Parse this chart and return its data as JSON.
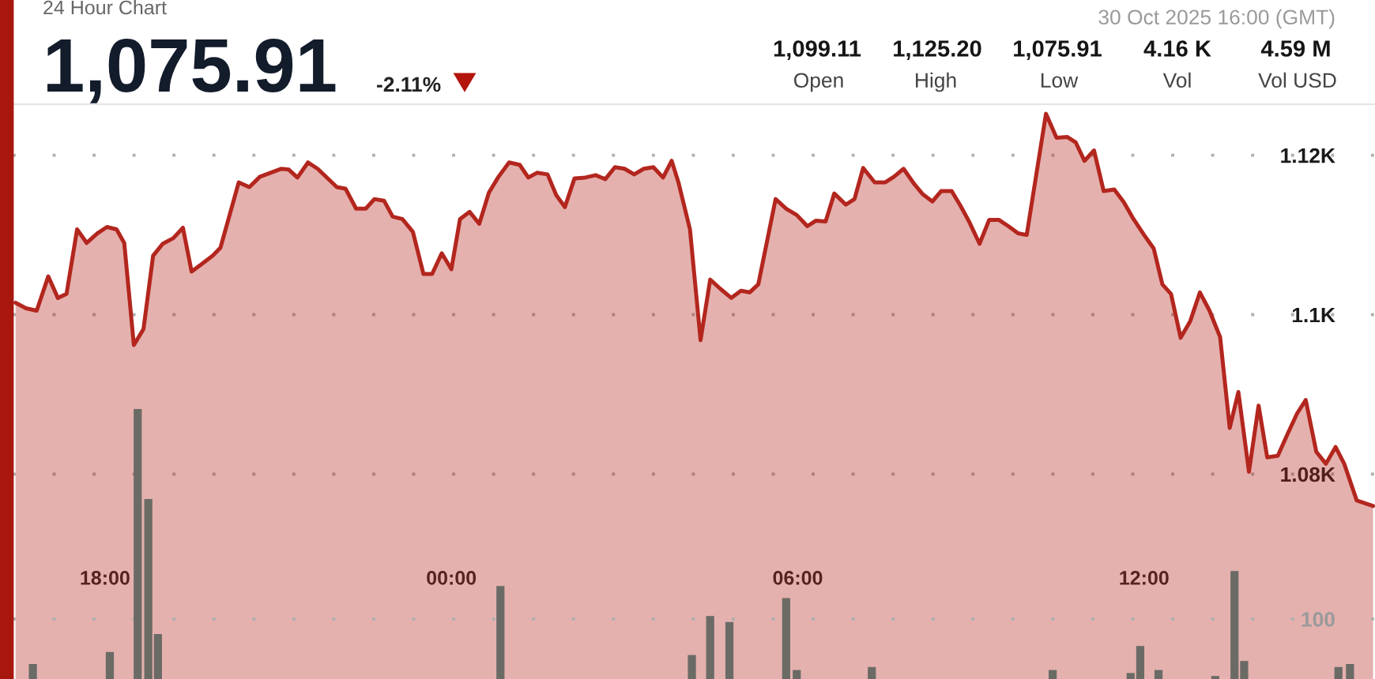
{
  "chart_data": {
    "type": "area",
    "title": "24 Hour Chart",
    "subtitle": "1,075.91",
    "annotations": [
      "30 Oct 2025 16:00 (GMT)",
      "-2.11%",
      "1,099.11",
      "Open",
      "1,125.20",
      "High",
      "1,075.91",
      "Low",
      "4.16 K",
      "Vol",
      "4.59 M",
      "Vol USD"
    ],
    "x": [
      "2025-10-29T16:27",
      "2025-10-29T16:38",
      "2025-10-29T16:49",
      "2025-10-29T17:01",
      "2025-10-29T17:11",
      "2025-10-29T17:20",
      "2025-10-29T17:31",
      "2025-10-29T17:41",
      "2025-10-29T17:52",
      "2025-10-29T18:02",
      "2025-10-29T18:12",
      "2025-10-29T18:20",
      "2025-10-29T18:30",
      "2025-10-29T18:40",
      "2025-10-29T18:50",
      "2025-10-29T19:00",
      "2025-10-29T19:11",
      "2025-10-29T19:21",
      "2025-10-29T19:30",
      "2025-10-29T19:41",
      "2025-10-29T19:52",
      "2025-10-29T20:00",
      "2025-10-29T20:19",
      "2025-10-29T20:30",
      "2025-10-29T20:41",
      "2025-10-29T20:52",
      "2025-10-29T21:03",
      "2025-10-29T21:11",
      "2025-10-29T21:20",
      "2025-10-29T21:31",
      "2025-10-29T21:41",
      "2025-10-29T22:01",
      "2025-10-29T22:10",
      "2025-10-29T22:21",
      "2025-10-29T22:31",
      "2025-10-29T22:40",
      "2025-10-29T22:50",
      "2025-10-29T22:59",
      "2025-10-29T23:09",
      "2025-10-29T23:20",
      "2025-10-29T23:31",
      "2025-10-29T23:40",
      "2025-10-29T23:50",
      "2025-10-30T00:00",
      "2025-10-30T00:09",
      "2025-10-30T00:19",
      "2025-10-30T00:29",
      "2025-10-30T00:39",
      "2025-10-30T00:49",
      "2025-10-30T01:00",
      "2025-10-30T01:11",
      "2025-10-30T01:20",
      "2025-10-30T01:29",
      "2025-10-30T01:40",
      "2025-10-30T01:49",
      "2025-10-30T01:58",
      "2025-10-30T02:08",
      "2025-10-30T02:19",
      "2025-10-30T02:30",
      "2025-10-30T02:40",
      "2025-10-30T02:50",
      "2025-10-30T03:00",
      "2025-10-30T03:10",
      "2025-10-30T03:20",
      "2025-10-30T03:30",
      "2025-10-30T03:40",
      "2025-10-30T03:49",
      "2025-10-30T03:56",
      "2025-10-30T04:08",
      "2025-10-30T04:19",
      "2025-10-30T04:29",
      "2025-10-30T04:40",
      "2025-10-30T04:51",
      "2025-10-30T05:01",
      "2025-10-30T05:10",
      "2025-10-30T05:19",
      "2025-10-30T05:37",
      "2025-10-30T05:48",
      "2025-10-30T05:59",
      "2025-10-30T06:10",
      "2025-10-30T06:19",
      "2025-10-30T06:29",
      "2025-10-30T06:38",
      "2025-10-30T06:50",
      "2025-10-30T06:59",
      "2025-10-30T07:08",
      "2025-10-30T07:20",
      "2025-10-30T07:31",
      "2025-10-30T07:40",
      "2025-10-30T07:50",
      "2025-10-30T08:01",
      "2025-10-30T08:10",
      "2025-10-30T08:20",
      "2025-10-30T08:29",
      "2025-10-30T08:40",
      "2025-10-30T08:49",
      "2025-10-30T08:58",
      "2025-10-30T09:09",
      "2025-10-30T09:19",
      "2025-10-30T09:29",
      "2025-10-30T09:39",
      "2025-10-30T09:49",
      "2025-10-30T09:58",
      "2025-10-30T10:18",
      "2025-10-30T10:29",
      "2025-10-30T10:40",
      "2025-10-30T10:49",
      "2025-10-30T10:58",
      "2025-10-30T11:08",
      "2025-10-30T11:18",
      "2025-10-30T11:29",
      "2025-10-30T11:39",
      "2025-10-30T11:49",
      "2025-10-30T12:00",
      "2025-10-30T12:10",
      "2025-10-30T12:19",
      "2025-10-30T12:28",
      "2025-10-30T12:38",
      "2025-10-30T12:48",
      "2025-10-30T12:58",
      "2025-10-30T13:08",
      "2025-10-30T13:19",
      "2025-10-30T13:29",
      "2025-10-30T13:38",
      "2025-10-30T13:49",
      "2025-10-30T13:59",
      "2025-10-30T14:08",
      "2025-10-30T14:19",
      "2025-10-30T14:29",
      "2025-10-30T14:39",
      "2025-10-30T14:48",
      "2025-10-30T14:59",
      "2025-10-30T15:09",
      "2025-10-30T15:19",
      "2025-10-30T15:28",
      "2025-10-30T15:41",
      "2025-10-30T15:58"
    ],
    "series": [
      {
        "color": "#b3261e",
        "values": [
          1101.5,
          1100.8,
          1100.5,
          1104.8,
          1102.1,
          1102.6,
          1110.7,
          1109.0,
          1110.2,
          1111.0,
          1110.7,
          1109.0,
          1096.2,
          1098.2,
          1107.4,
          1108.9,
          1109.6,
          1110.9,
          1105.4,
          1106.4,
          1107.4,
          1108.4,
          1116.6,
          1116.0,
          1117.3,
          1117.8,
          1118.3,
          1118.2,
          1117.2,
          1119.1,
          1118.3,
          1116.0,
          1115.8,
          1113.3,
          1113.3,
          1114.5,
          1114.3,
          1112.3,
          1112.0,
          1110.4,
          1105.1,
          1105.1,
          1107.7,
          1105.7,
          1112.0,
          1112.9,
          1111.4,
          1115.3,
          1117.3,
          1119.1,
          1118.8,
          1117.2,
          1117.8,
          1117.6,
          1115.0,
          1113.5,
          1117.1,
          1117.2,
          1117.5,
          1117.0,
          1118.5,
          1118.3,
          1117.6,
          1118.3,
          1118.5,
          1117.2,
          1119.3,
          1116.6,
          1110.7,
          1096.8,
          1104.4,
          1103.2,
          1102.1,
          1103.0,
          1102.8,
          1103.8,
          1114.5,
          1113.3,
          1112.5,
          1111.1,
          1111.8,
          1111.7,
          1115.2,
          1113.8,
          1114.5,
          1118.4,
          1116.6,
          1116.6,
          1117.3,
          1118.3,
          1116.4,
          1115.1,
          1114.2,
          1115.5,
          1115.5,
          1113.7,
          1111.7,
          1108.9,
          1111.9,
          1111.9,
          1111.1,
          1110.2,
          1110.0,
          1125.2,
          1122.2,
          1122.3,
          1121.6,
          1119.3,
          1120.6,
          1115.5,
          1115.7,
          1114.1,
          1112.0,
          1110.0,
          1108.3,
          1103.8,
          1102.6,
          1097.1,
          1099.2,
          1102.8,
          1100.5,
          1097.2,
          1085.8,
          1090.3,
          1080.3,
          1088.6,
          1082.1,
          1082.3,
          1085.0,
          1087.6,
          1089.3,
          1082.8,
          1081.3,
          1083.4,
          1081.3,
          1076.7,
          1076.0
        ]
      },
      {
        "type": "bar",
        "axis": "y2",
        "color": "#6b6b66",
        "x": [
          "2025-10-29T16:45",
          "2025-10-29T18:05",
          "2025-10-29T18:34",
          "2025-10-29T18:45",
          "2025-10-29T18:55",
          "2025-10-30T00:51",
          "2025-10-30T04:10",
          "2025-10-30T04:29",
          "2025-10-30T04:49",
          "2025-10-30T05:48",
          "2025-10-30T05:59",
          "2025-10-30T07:17",
          "2025-10-30T10:25",
          "2025-10-30T11:46",
          "2025-10-30T11:56",
          "2025-10-30T12:15",
          "2025-10-30T13:14",
          "2025-10-30T13:34",
          "2025-10-30T13:44",
          "2025-10-30T15:22",
          "2025-10-30T15:34"
        ],
        "values": [
          25,
          45,
          450,
          300,
          75,
          155,
          40,
          105,
          95,
          135,
          15,
          20,
          15,
          10,
          55,
          15,
          5,
          180,
          30,
          20,
          25
        ]
      }
    ],
    "xlim": [
      "2025-10-29T16:24",
      "2025-10-30T16:00"
    ],
    "xticks": [
      {
        "value": "2025-10-29T18:00",
        "label": "18:00"
      },
      {
        "value": "2025-10-30T00:00",
        "label": "00:00"
      },
      {
        "value": "2025-10-30T06:00",
        "label": "06:00"
      },
      {
        "value": "2025-10-30T12:00",
        "label": "12:00"
      }
    ],
    "ylim": [
      1054.3,
      1126.4
    ],
    "yticks": [
      {
        "value": 1080,
        "label": "1.08K"
      },
      {
        "value": 1100,
        "label": "1.1K"
      },
      {
        "value": 1120,
        "label": "1.12K"
      }
    ],
    "y2lim": [
      0,
      958
    ],
    "y2ticks": [
      100
    ],
    "grid": "y"
  }
}
